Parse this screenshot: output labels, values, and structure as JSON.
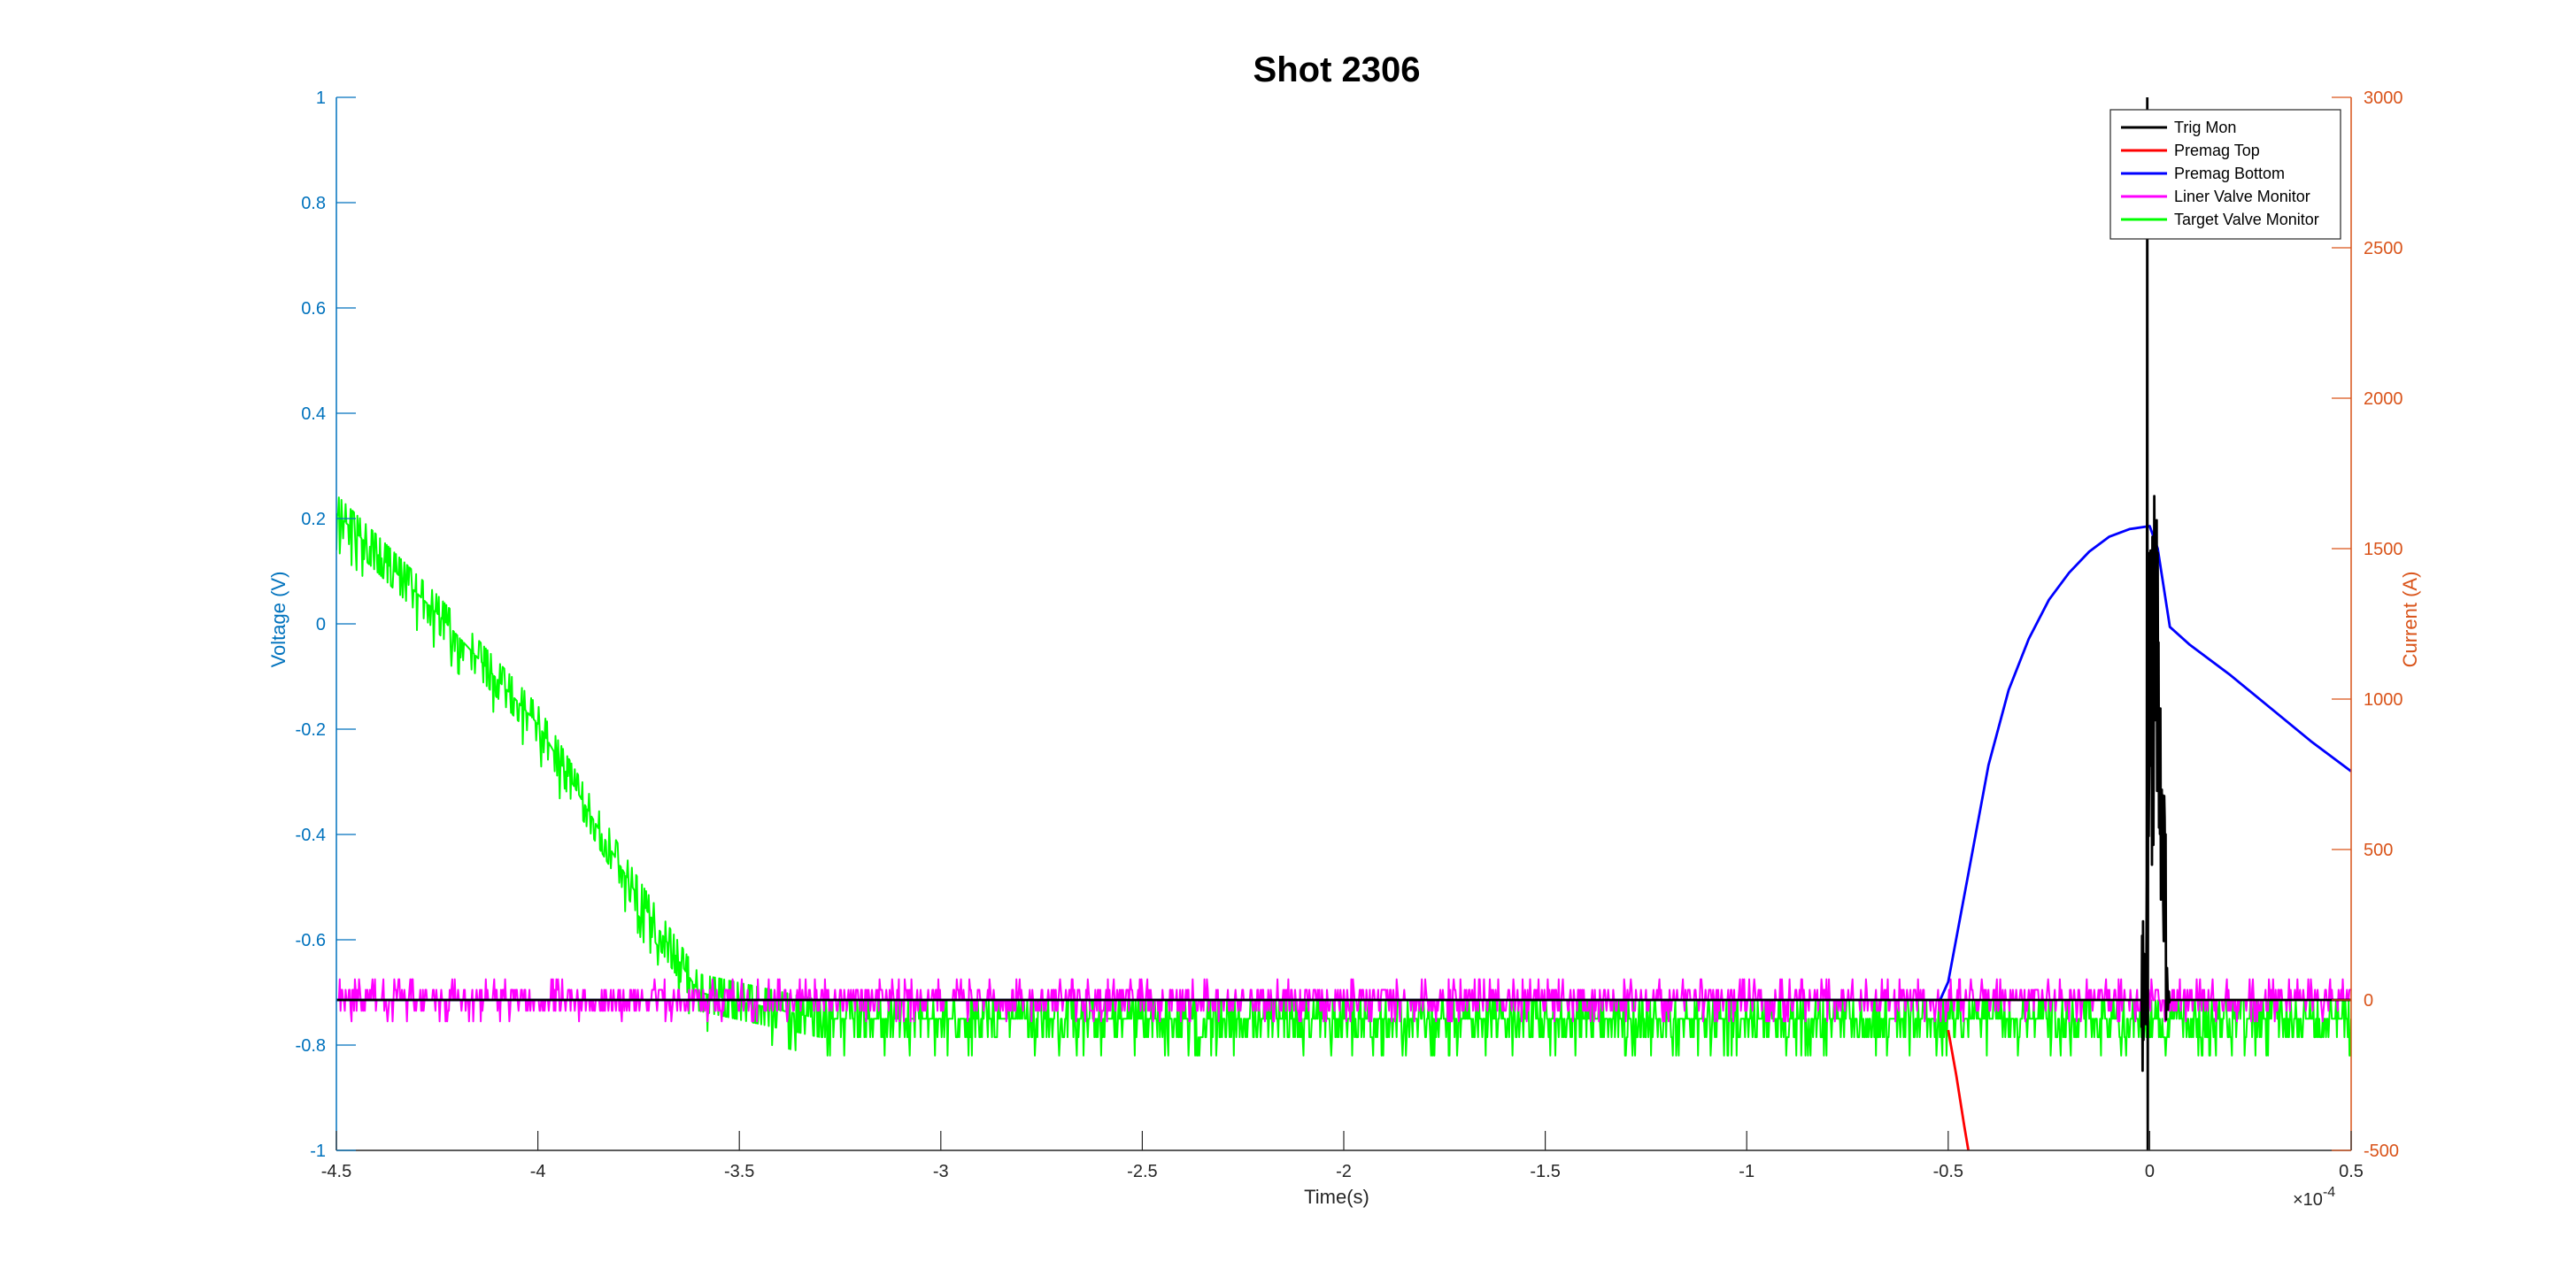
{
  "chart_data": {
    "type": "line",
    "title": "Shot 2306",
    "xlabel": "Time(s)",
    "x_exponent_label": "×10",
    "x_exponent_power": "-4",
    "xlim": [
      -4.5,
      0.5
    ],
    "x_ticks": [
      -4.5,
      -4,
      -3.5,
      -3,
      -2.5,
      -2,
      -1.5,
      -1,
      -0.5,
      0,
      0.5
    ],
    "x_tick_labels": [
      "-4.5",
      "-4",
      "-3.5",
      "-3",
      "-2.5",
      "-2",
      "-1.5",
      "-1",
      "-0.5",
      "0",
      "0.5"
    ],
    "y_left": {
      "label": "Voltage (V)",
      "lim": [
        -1,
        1
      ],
      "ticks": [
        -1,
        -0.8,
        -0.6,
        -0.4,
        -0.2,
        0,
        0.2,
        0.4,
        0.6,
        0.8,
        1
      ],
      "tick_labels": [
        "-1",
        "-0.8",
        "-0.6",
        "-0.4",
        "-0.2",
        "0",
        "0.2",
        "0.4",
        "0.6",
        "0.8",
        "1"
      ],
      "color": "#0072BD"
    },
    "y_right": {
      "label": "Current (A)",
      "lim": [
        -500,
        3000
      ],
      "ticks": [
        -500,
        0,
        500,
        1000,
        1500,
        2000,
        2500,
        3000
      ],
      "tick_labels": [
        "-500",
        "0",
        "500",
        "1000",
        "1500",
        "2000",
        "2500",
        "3000"
      ],
      "color": "#D95319"
    },
    "legend_position": "top-right",
    "series": [
      {
        "name": "Trig Mon",
        "color": "#000000",
        "axis": "right",
        "style": "spike",
        "x": [
          -4.5,
          -0.02,
          -0.01,
          0.0,
          0.002,
          0.005,
          0.01,
          0.015,
          0.02,
          0.03,
          0.05,
          0.5
        ],
        "y": [
          0,
          0,
          0,
          3000,
          -500,
          1700,
          900,
          1600,
          1000,
          1400,
          0,
          0
        ]
      },
      {
        "name": "Premag Top",
        "color": "#FF0000",
        "axis": "right",
        "x": [
          -0.5,
          -0.48,
          -0.46,
          -0.45
        ],
        "y": [
          -100,
          -250,
          -420,
          -500
        ]
      },
      {
        "name": "Premag Bottom",
        "color": "#0000FF",
        "axis": "right",
        "x": [
          -4.5,
          -0.52,
          -0.5,
          -0.45,
          -0.4,
          -0.35,
          -0.3,
          -0.25,
          -0.2,
          -0.15,
          -0.1,
          -0.05,
          0.0,
          0.02,
          0.05,
          0.1,
          0.2,
          0.3,
          0.4,
          0.5
        ],
        "y": [
          0,
          0,
          60,
          420,
          780,
          1030,
          1200,
          1330,
          1420,
          1490,
          1540,
          1565,
          1575,
          1500,
          1240,
          1180,
          1080,
          970,
          860,
          760
        ]
      },
      {
        "name": "Liner Valve Monitor",
        "color": "#FF00FF",
        "axis": "left",
        "style": "noise",
        "x": [
          -4.5,
          0.5
        ],
        "y": [
          -0.715,
          -0.715
        ],
        "noise_levels": [
          -0.755,
          -0.735,
          -0.715,
          -0.695,
          -0.675
        ]
      },
      {
        "name": "Target Valve Monitor",
        "color": "#00FF00",
        "axis": "left",
        "style": "noise",
        "x": [
          -4.5,
          -4.25,
          -4.0,
          -3.75,
          -3.6,
          -3.3,
          0.5
        ],
        "y": [
          0.21,
          0.02,
          -0.19,
          -0.52,
          -0.7,
          -0.75,
          -0.75
        ],
        "noise_amplitude": 0.035
      }
    ]
  }
}
